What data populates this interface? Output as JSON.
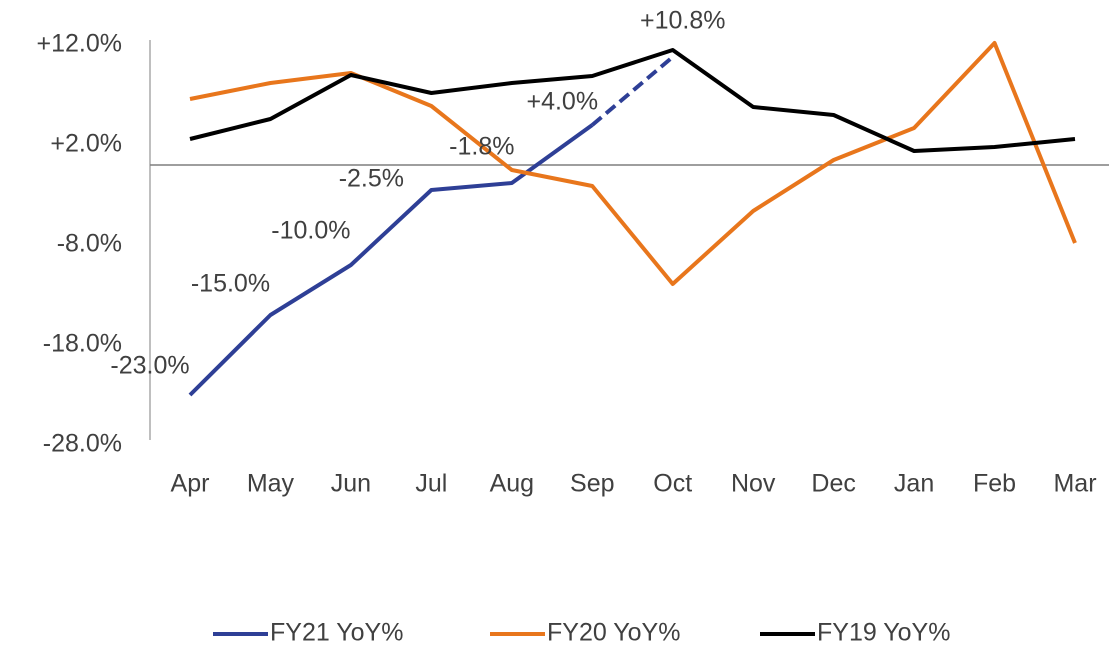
{
  "chart_data": {
    "type": "line",
    "categories": [
      "Apr",
      "May",
      "Jun",
      "Jul",
      "Aug",
      "Sep",
      "Oct",
      "Nov",
      "Dec",
      "Jan",
      "Feb",
      "Mar"
    ],
    "series": [
      {
        "name": "FY21 YoY%",
        "color": "#2e3f96",
        "dashed_from": 5,
        "values": [
          -23.0,
          -15.0,
          -10.0,
          -2.5,
          -1.8,
          4.0,
          10.8,
          null,
          null,
          null,
          null,
          null
        ],
        "value_labels": [
          "-23.0%",
          "-15.0%",
          "-10.0%",
          "-2.5%",
          "-1.8%",
          "+4.0%",
          "+10.8%",
          null,
          null,
          null,
          null,
          null
        ]
      },
      {
        "name": "FY20 YoY%",
        "color": "#e8761c",
        "values": [
          6.6,
          8.2,
          9.2,
          5.9,
          -0.5,
          -2.1,
          -11.9,
          -4.6,
          0.5,
          3.7,
          12.2,
          -7.8
        ]
      },
      {
        "name": "FY19 YoY%",
        "color": "#000000",
        "values": [
          2.6,
          4.6,
          9.0,
          7.2,
          8.2,
          8.9,
          11.5,
          5.8,
          5.0,
          1.4,
          1.8,
          2.6
        ]
      }
    ],
    "ylim": [
      -28,
      12
    ],
    "yticks": [
      {
        "value": -28,
        "label": "-28.0%"
      },
      {
        "value": -18,
        "label": "-18.0%"
      },
      {
        "value": -8,
        "label": "-8.0%"
      },
      {
        "value": 2,
        "label": "+2.0%"
      },
      {
        "value": 12,
        "label": "+12.0%"
      }
    ],
    "legend": "bottom"
  }
}
